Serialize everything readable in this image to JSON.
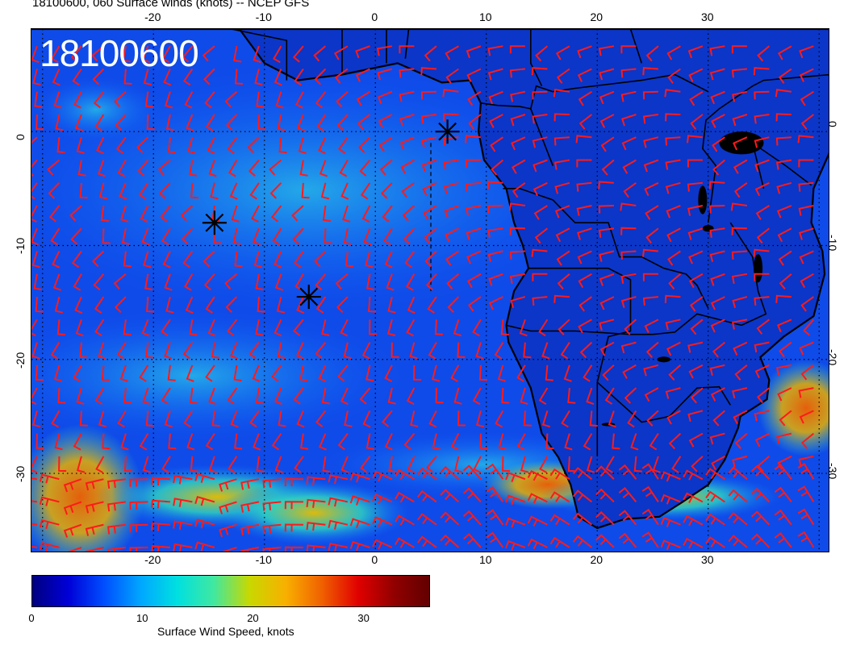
{
  "header": {
    "title": "18100600, 060 Surface winds (knots) -- NCEP GFS",
    "stamp": "18100600"
  },
  "map": {
    "lon_range": [
      -31,
      41
    ],
    "lat_range": [
      -37,
      9
    ],
    "lon_ticks_top": [
      "-20",
      "-10",
      "0",
      "10",
      "20",
      "30"
    ],
    "lon_ticks_bottom": [
      "-20",
      "-10",
      "0",
      "10",
      "20",
      "30"
    ],
    "lat_ticks_left": [
      "0",
      "-10",
      "-20",
      "-30"
    ],
    "lat_ticks_right": [
      "0",
      "-10",
      "-20",
      "-30"
    ],
    "markers": [
      {
        "name": "asterisk",
        "lon": 6.5,
        "lat": 0
      },
      {
        "name": "asterisk",
        "lon": -14.5,
        "lat": -8
      },
      {
        "name": "asterisk",
        "lon": -6,
        "lat": -14.5
      }
    ],
    "barb_color": "#ff1a1a",
    "coast_color": "#000000"
  },
  "colorbar": {
    "ticks": [
      "0",
      "10",
      "20",
      "30"
    ],
    "tick_values": [
      0,
      10,
      20,
      30
    ],
    "range": [
      0,
      36
    ],
    "label": "Surface Wind Speed, knots",
    "colors": [
      "#000080",
      "#0000d8",
      "#0050ff",
      "#00a8ff",
      "#00e0e0",
      "#40e8a0",
      "#c8d800",
      "#f8b000",
      "#f06000",
      "#e00000",
      "#900000",
      "#600000"
    ]
  }
}
